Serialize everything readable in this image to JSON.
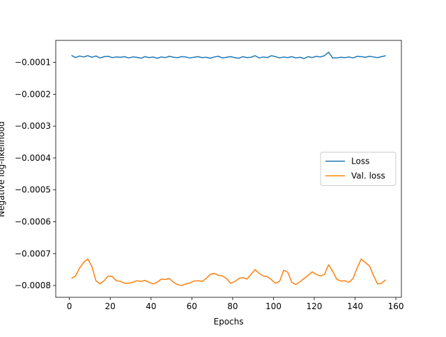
{
  "chart_data": {
    "type": "line",
    "x_label": "Epochs",
    "y_label": "Negative log-likelihood",
    "x": [
      1,
      3,
      5,
      7,
      9,
      11,
      13,
      15,
      17,
      19,
      21,
      23,
      25,
      27,
      29,
      31,
      33,
      35,
      37,
      39,
      41,
      43,
      45,
      47,
      49,
      51,
      53,
      55,
      57,
      59,
      61,
      63,
      65,
      67,
      69,
      71,
      73,
      75,
      77,
      79,
      81,
      83,
      85,
      87,
      89,
      91,
      93,
      95,
      97,
      99,
      101,
      103,
      105,
      107,
      109,
      111,
      113,
      115,
      117,
      119,
      121,
      123,
      125,
      127,
      129,
      131,
      133,
      135,
      137,
      139,
      141,
      143,
      145,
      147,
      149,
      151,
      153,
      155
    ],
    "series": [
      {
        "name": "Loss",
        "color": "#1f77b4",
        "values": [
          -7.8e-05,
          -8.5e-05,
          -8e-05,
          -8.3e-05,
          -7.9e-05,
          -8.4e-05,
          -8e-05,
          -8.6e-05,
          -8.2e-05,
          -8.1e-05,
          -8.5e-05,
          -8.3e-05,
          -8.4e-05,
          -8.2e-05,
          -8.6e-05,
          -8.3e-05,
          -8.4e-05,
          -8.7e-05,
          -8.2e-05,
          -8.5e-05,
          -8.3e-05,
          -8.7e-05,
          -8.3e-05,
          -8.5e-05,
          -8.1e-05,
          -8.4e-05,
          -8.5e-05,
          -8.2e-05,
          -8.3e-05,
          -8.6e-05,
          -8.4e-05,
          -8.2e-05,
          -8.5e-05,
          -8.4e-05,
          -8.7e-05,
          -8.3e-05,
          -8.1e-05,
          -8.6e-05,
          -8.4e-05,
          -8.2e-05,
          -8.5e-05,
          -8.7e-05,
          -8.2e-05,
          -8.5e-05,
          -8.4e-05,
          -7.9e-05,
          -8.6e-05,
          -8.3e-05,
          -8.5e-05,
          -7.9e-05,
          -8.2e-05,
          -8.6e-05,
          -8.3e-05,
          -8.5e-05,
          -8.2e-05,
          -8.6e-05,
          -8.4e-05,
          -8.8e-05,
          -8.2e-05,
          -8.5e-05,
          -8.1e-05,
          -8.3e-05,
          -7.9e-05,
          -6.8e-05,
          -8.6e-05,
          -8.6e-05,
          -8.4e-05,
          -8.5e-05,
          -8.3e-05,
          -8.6e-05,
          -8.1e-05,
          -8.2e-05,
          -8.4e-05,
          -8.1e-05,
          -8.3e-05,
          -8.5e-05,
          -8.2e-05,
          -7.9e-05
        ]
      },
      {
        "name": "Val. loss",
        "color": "#ff7f0e",
        "values": [
          -0.000778,
          -0.00077,
          -0.000745,
          -0.000727,
          -0.000717,
          -0.00074,
          -0.000785,
          -0.000795,
          -0.000785,
          -0.00077,
          -0.000772,
          -0.000785,
          -0.000787,
          -0.000793,
          -0.000793,
          -0.00079,
          -0.000785,
          -0.000787,
          -0.000784,
          -0.00079,
          -0.000795,
          -0.00079,
          -0.00078,
          -0.000781,
          -0.000778,
          -0.00079,
          -0.000797,
          -0.0008,
          -0.000795,
          -0.000792,
          -0.000786,
          -0.000785,
          -0.000787,
          -0.000778,
          -0.000765,
          -0.000762,
          -0.000768,
          -0.00077,
          -0.000778,
          -0.000793,
          -0.000788,
          -0.000778,
          -0.000775,
          -0.00078,
          -0.000765,
          -0.00075,
          -0.000762,
          -0.00077,
          -0.000772,
          -0.000782,
          -0.000793,
          -0.000787,
          -0.000752,
          -0.000758,
          -0.00079,
          -0.000797,
          -0.000788,
          -0.000778,
          -0.000768,
          -0.000757,
          -0.000765,
          -0.00077,
          -0.000765,
          -0.000735,
          -0.000755,
          -0.00078,
          -0.000786,
          -0.000785,
          -0.00079,
          -0.000778,
          -0.000745,
          -0.000717,
          -0.000728,
          -0.000738,
          -0.000768,
          -0.000795,
          -0.000793,
          -0.000782
        ]
      }
    ],
    "xlim": [
      -6.7,
      162.7
    ],
    "ylim": [
      -0.000837,
      -3.1e-05
    ],
    "xticks": [
      0,
      20,
      40,
      60,
      80,
      100,
      120,
      140,
      160
    ],
    "yticks": [
      {
        "value": -0.0008,
        "label": "−0.0008"
      },
      {
        "value": -0.0007,
        "label": "−0.0007"
      },
      {
        "value": -0.0006,
        "label": "−0.0006"
      },
      {
        "value": -0.0005,
        "label": "−0.0005"
      },
      {
        "value": -0.0004,
        "label": "−0.0004"
      },
      {
        "value": -0.0003,
        "label": "−0.0003"
      },
      {
        "value": -0.0002,
        "label": "−0.0002"
      },
      {
        "value": -0.0001,
        "label": "−0.0001"
      }
    ],
    "legend": "center right",
    "grid": false
  }
}
